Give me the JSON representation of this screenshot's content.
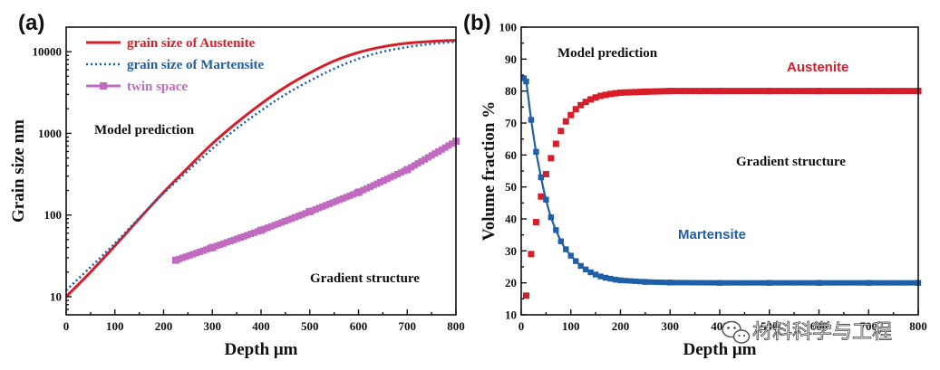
{
  "colors": {
    "austenite": "#d71e28",
    "martensite": "#1f5fa8",
    "twin": "#c06ac0",
    "axis": "#111111"
  },
  "watermark": {
    "text": "材料科学与工程",
    "icon": "wechat-icon"
  },
  "chart_data": [
    {
      "panel_label": "(a)",
      "type": "line",
      "xscale": "linear",
      "yscale": "log",
      "xlabel": "Depth μm",
      "ylabel": "Grain size nm",
      "xlim": [
        0,
        800
      ],
      "ylim": [
        6,
        20000
      ],
      "xticks": [
        0,
        100,
        200,
        300,
        400,
        500,
        600,
        700,
        800
      ],
      "xtick_labels": [
        "0",
        "100",
        "200",
        "300",
        "400",
        "500",
        "600",
        "700",
        "800"
      ],
      "yticks": [
        10,
        100,
        1000,
        10000
      ],
      "ytick_labels": [
        "10",
        "100",
        "1000",
        "10000"
      ],
      "annotations": [
        "Model prediction",
        "Gradient structure"
      ],
      "series": [
        {
          "name": "grain size of Austenite",
          "color_key": "austenite",
          "style": "solid",
          "x": [
            0,
            50,
            100,
            150,
            200,
            250,
            300,
            350,
            400,
            450,
            500,
            550,
            600,
            650,
            700,
            750,
            800
          ],
          "y": [
            10,
            20,
            42,
            90,
            190,
            380,
            750,
            1350,
            2300,
            3700,
            5500,
            7700,
            9800,
            11500,
            12700,
            13400,
            13800
          ]
        },
        {
          "name": "grain size of Martensite",
          "color_key": "martensite",
          "style": "dotted",
          "x": [
            0,
            50,
            100,
            150,
            200,
            250,
            300,
            350,
            400,
            450,
            500,
            550,
            600,
            650,
            700,
            750,
            800
          ],
          "y": [
            12,
            23,
            45,
            92,
            185,
            350,
            650,
            1150,
            1900,
            3000,
            4400,
            6200,
            8200,
            10000,
            11400,
            12500,
            13200
          ]
        },
        {
          "name": "twin space",
          "color_key": "twin",
          "style": "square-line",
          "x": [
            225,
            300,
            400,
            500,
            600,
            700,
            800
          ],
          "y": [
            28,
            40,
            65,
            110,
            190,
            360,
            800
          ]
        }
      ]
    },
    {
      "panel_label": "(b)",
      "type": "line",
      "xscale": "linear",
      "yscale": "linear",
      "xlabel": "Depth μm",
      "ylabel": "Volume fraction %",
      "xlim": [
        0,
        800
      ],
      "ylim": [
        10,
        100
      ],
      "xticks": [
        0,
        100,
        200,
        300,
        400,
        500,
        600,
        700,
        800
      ],
      "xtick_labels": [
        "0",
        "100",
        "200",
        "300",
        "400",
        "500",
        "600",
        "700",
        "800"
      ],
      "yticks": [
        10,
        20,
        30,
        40,
        50,
        60,
        70,
        80,
        90,
        100
      ],
      "ytick_labels": [
        "10",
        "20",
        "30",
        "40",
        "50",
        "60",
        "70",
        "80",
        "90",
        "100"
      ],
      "annotations": [
        "Model prediction",
        "Gradient structure"
      ],
      "series": [
        {
          "name": "Austenite",
          "color_key": "austenite",
          "style": "squares",
          "x": [
            10,
            20,
            30,
            40,
            50,
            60,
            70,
            80,
            90,
            100,
            110,
            120,
            130,
            140,
            150,
            160,
            170,
            180,
            190,
            200,
            250,
            300,
            400,
            500,
            600,
            700,
            800
          ],
          "y": [
            16,
            29,
            39,
            47,
            54,
            59,
            63.5,
            67.5,
            70.5,
            72.5,
            74.3,
            75.6,
            76.6,
            77.4,
            78,
            78.5,
            78.8,
            79.1,
            79.3,
            79.5,
            79.8,
            80,
            80,
            80,
            80,
            80,
            80
          ]
        },
        {
          "name": "Martensite",
          "color_key": "martensite",
          "style": "squares-line",
          "x": [
            5,
            10,
            20,
            30,
            40,
            50,
            60,
            70,
            80,
            90,
            100,
            110,
            120,
            130,
            140,
            150,
            160,
            170,
            180,
            190,
            200,
            250,
            300,
            400,
            500,
            600,
            700,
            800
          ],
          "y": [
            84,
            83,
            71,
            61,
            53,
            46,
            40.5,
            36.5,
            33,
            30.5,
            28.5,
            26.8,
            25.3,
            24.2,
            23.3,
            22.6,
            22,
            21.6,
            21.3,
            21,
            20.8,
            20.3,
            20.1,
            20,
            20,
            20,
            20,
            20
          ]
        }
      ]
    }
  ]
}
